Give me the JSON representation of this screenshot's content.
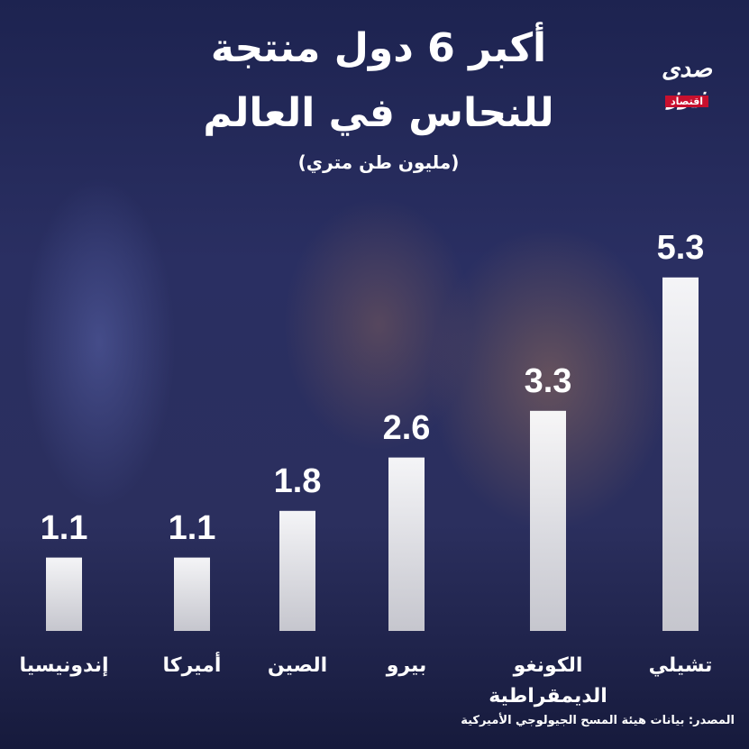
{
  "title": [
    "أكبر 6 دول منتجة",
    "للنحاس في العالم"
  ],
  "subtitle": "(مليون طن متري)",
  "logo": {
    "name": "صدى نيوز",
    "section": "اقتصاد"
  },
  "chart_data": {
    "type": "bar",
    "categories": [
      "إندونيسيا",
      "أميركا",
      "الصين",
      "بيرو",
      "الكونغو الديمقراطية",
      "تشيلي"
    ],
    "values": [
      1.1,
      1.1,
      1.8,
      2.6,
      3.3,
      5.3
    ],
    "color": "#f2f2f2"
  },
  "source": "المصدر: بيانات هيئة المسح الجيولوجي الأميركية"
}
